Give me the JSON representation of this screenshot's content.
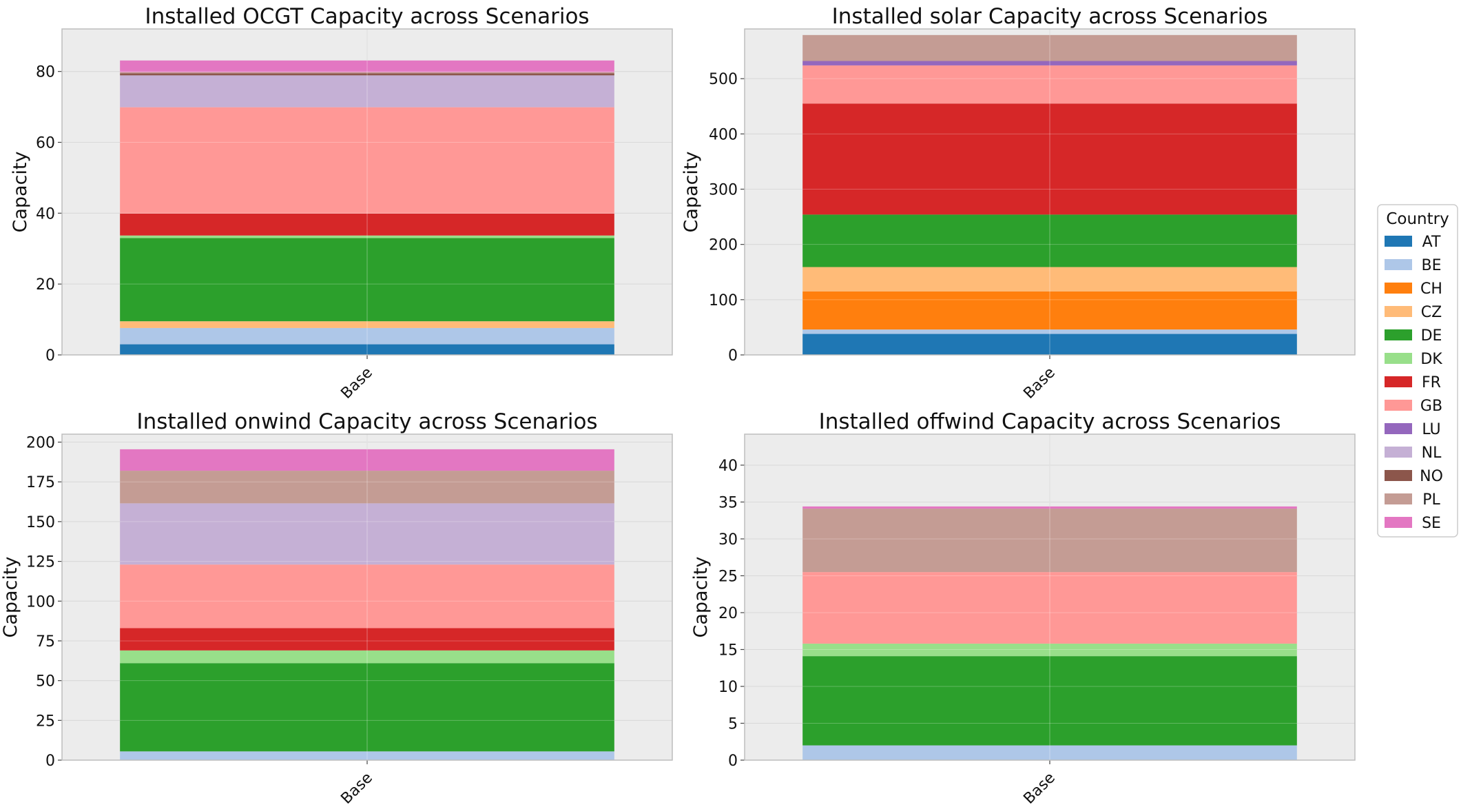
{
  "colors": {
    "AT": "#1f77b4",
    "BE": "#aec7e8",
    "CH": "#ff7f0e",
    "CZ": "#ffbb78",
    "DE": "#2ca02c",
    "DK": "#98df8a",
    "FR": "#d62728",
    "GB": "#ff9896",
    "LU": "#9467bd",
    "NL": "#c5b0d5",
    "NO": "#8c564b",
    "PL": "#c49c94",
    "SE": "#e377c2"
  },
  "plot_style": {
    "background": "#ececec",
    "grid": "#cccccc",
    "frame": "#bdbdbd"
  },
  "legend": {
    "title": "Country",
    "placement": "center-right",
    "entries": [
      "AT",
      "BE",
      "CH",
      "CZ",
      "DE",
      "DK",
      "FR",
      "GB",
      "LU",
      "NL",
      "NO",
      "PL",
      "SE"
    ]
  },
  "chart_data": [
    {
      "type": "bar",
      "stacked": true,
      "title": "Installed OCGT Capacity across Scenarios",
      "xlabel": "",
      "ylabel": "Capacity",
      "categories": [
        "Base"
      ],
      "ylim": [
        0,
        92
      ],
      "yticks": [
        0,
        20,
        40,
        60,
        80
      ],
      "grid": true,
      "series": [
        {
          "name": "AT",
          "values": [
            3.0
          ]
        },
        {
          "name": "BE",
          "values": [
            4.6
          ]
        },
        {
          "name": "CZ",
          "values": [
            1.9
          ]
        },
        {
          "name": "DE",
          "values": [
            23.5
          ]
        },
        {
          "name": "DK",
          "values": [
            0.7
          ]
        },
        {
          "name": "FR",
          "values": [
            6.2
          ]
        },
        {
          "name": "GB",
          "values": [
            30.0
          ]
        },
        {
          "name": "NL",
          "values": [
            9.0
          ]
        },
        {
          "name": "NO",
          "values": [
            0.6
          ]
        },
        {
          "name": "PL",
          "values": [
            0.3
          ]
        },
        {
          "name": "SE",
          "values": [
            3.3
          ]
        }
      ]
    },
    {
      "type": "bar",
      "stacked": true,
      "title": "Installed solar Capacity across Scenarios",
      "xlabel": "",
      "ylabel": "Capacity",
      "categories": [
        "Base"
      ],
      "ylim": [
        0,
        590
      ],
      "yticks": [
        0,
        100,
        200,
        300,
        400,
        500
      ],
      "grid": true,
      "series": [
        {
          "name": "AT",
          "values": [
            38
          ]
        },
        {
          "name": "BE",
          "values": [
            8
          ]
        },
        {
          "name": "CH",
          "values": [
            69
          ]
        },
        {
          "name": "CZ",
          "values": [
            44
          ]
        },
        {
          "name": "DE",
          "values": [
            95
          ]
        },
        {
          "name": "FR",
          "values": [
            201
          ]
        },
        {
          "name": "GB",
          "values": [
            69
          ]
        },
        {
          "name": "LU",
          "values": [
            8
          ]
        },
        {
          "name": "PL",
          "values": [
            47
          ]
        }
      ]
    },
    {
      "type": "bar",
      "stacked": true,
      "title": "Installed onwind Capacity across Scenarios",
      "xlabel": "",
      "ylabel": "Capacity",
      "categories": [
        "Base"
      ],
      "ylim": [
        0,
        205
      ],
      "yticks": [
        0,
        25,
        50,
        75,
        100,
        125,
        150,
        175,
        200
      ],
      "grid": true,
      "series": [
        {
          "name": "BE",
          "values": [
            5.5
          ]
        },
        {
          "name": "DE",
          "values": [
            55.5
          ]
        },
        {
          "name": "DK",
          "values": [
            8.0
          ]
        },
        {
          "name": "FR",
          "values": [
            14.0
          ]
        },
        {
          "name": "GB",
          "values": [
            40.0
          ]
        },
        {
          "name": "NL",
          "values": [
            38.5
          ]
        },
        {
          "name": "PL",
          "values": [
            20.5
          ]
        },
        {
          "name": "SE",
          "values": [
            13.5
          ]
        }
      ]
    },
    {
      "type": "bar",
      "stacked": true,
      "title": "Installed offwind Capacity across Scenarios",
      "xlabel": "",
      "ylabel": "Capacity",
      "categories": [
        "Base"
      ],
      "ylim": [
        0,
        44.2
      ],
      "yticks": [
        0,
        5,
        10,
        15,
        20,
        25,
        30,
        35,
        40
      ],
      "grid": true,
      "series": [
        {
          "name": "BE",
          "values": [
            2.0
          ]
        },
        {
          "name": "DE",
          "values": [
            12.1
          ]
        },
        {
          "name": "DK",
          "values": [
            1.7
          ]
        },
        {
          "name": "GB",
          "values": [
            9.7
          ]
        },
        {
          "name": "PL",
          "values": [
            8.6
          ]
        },
        {
          "name": "SE",
          "values": [
            0.3
          ]
        }
      ]
    }
  ]
}
